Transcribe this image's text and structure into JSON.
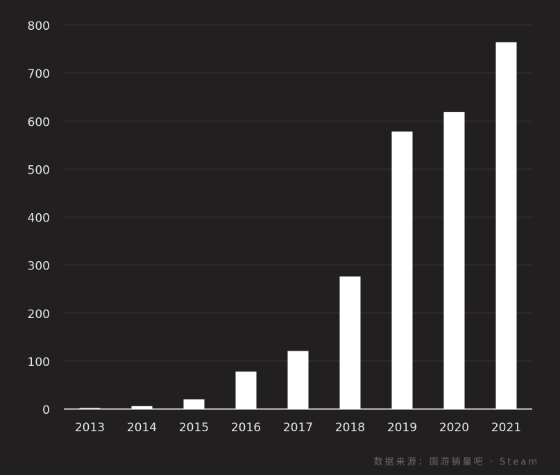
{
  "chart_data": {
    "type": "bar",
    "categories": [
      "2013",
      "2014",
      "2015",
      "2016",
      "2017",
      "2018",
      "2019",
      "2020",
      "2021"
    ],
    "values": [
      2,
      6,
      20,
      78,
      121,
      276,
      578,
      619,
      764
    ],
    "y_ticks": [
      "0",
      "100",
      "200",
      "300",
      "400",
      "500",
      "600",
      "700",
      "800"
    ],
    "ylim": [
      0,
      800
    ],
    "grid": true,
    "colors": {
      "background": "#221f20",
      "bar": "#ffffff",
      "grid": "#3a3737",
      "axis": "#e6e6e6",
      "text": "#e6e6e6"
    }
  },
  "source": "数据来源：国游销量吧 · Steam"
}
